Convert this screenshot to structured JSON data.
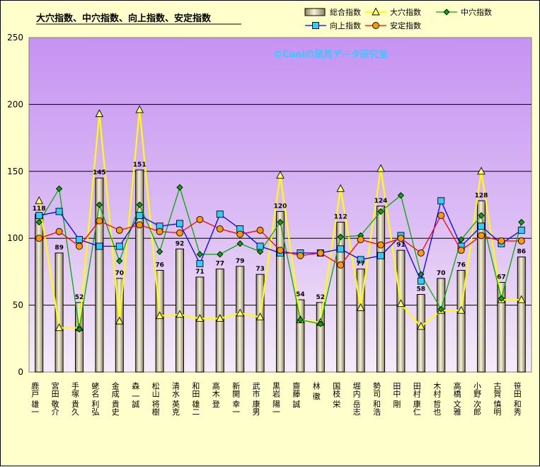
{
  "chart_data": {
    "type": "bar",
    "title": "大穴指数、中穴指数、向上指数、安定指数",
    "watermark": "©Caniの競馬データ研究室",
    "ylim": [
      0,
      250
    ],
    "yticks": [
      0,
      50,
      100,
      150,
      200,
      250
    ],
    "grid": true,
    "legend_position": "top-right",
    "categories": [
      "鹿戸 雄一",
      "宮田 敬介",
      "手塚 貴久",
      "蛯名 利弘",
      "金成 貴史",
      "森 一誠",
      "松山 将樹",
      "清水 英克",
      "和田 雄二",
      "高木 登",
      "新開 幸一",
      "武市 康男",
      "黒岩 陽一",
      "齋藤 誠",
      "林 徹",
      "国枝 栄",
      "堀内 岳志",
      "勢司 和浩",
      "田中 剛",
      "田村 康仁",
      "木村 哲也",
      "高橋 文雅",
      "小野 次郎",
      "古賀 慎明",
      "笹田 和秀"
    ],
    "series": [
      {
        "name": "総合指数",
        "type": "bar",
        "color": "#ddd9c3",
        "values": [
          118,
          89,
          52,
          145,
          70,
          151,
          76,
          92,
          71,
          77,
          79,
          73,
          120,
          54,
          52,
          112,
          77,
          124,
          91,
          58,
          70,
          76,
          128,
          67,
          86
        ]
      },
      {
        "name": "大穴指数",
        "type": "line",
        "marker": "triangle",
        "color": "#ffff00",
        "values": [
          128,
          33,
          33,
          193,
          38,
          196,
          42,
          43,
          40,
          40,
          44,
          41,
          147,
          39,
          37,
          137,
          48,
          152,
          51,
          34,
          46,
          46,
          150,
          54,
          54
        ]
      },
      {
        "name": "中穴指数",
        "type": "line",
        "marker": "diamond",
        "color": "#00aa00",
        "values": [
          112,
          137,
          32,
          125,
          83,
          125,
          90,
          138,
          88,
          88,
          96,
          90,
          112,
          39,
          36,
          101,
          102,
          120,
          132,
          73,
          47,
          99,
          117,
          55,
          112
        ]
      },
      {
        "name": "向上指数",
        "type": "line",
        "marker": "square",
        "color": "#0000ff",
        "values": [
          117,
          120,
          99,
          94,
          94,
          117,
          109,
          111,
          81,
          118,
          107,
          94,
          89,
          89,
          89,
          92,
          84,
          87,
          102,
          68,
          128,
          94,
          109,
          96,
          106
        ]
      },
      {
        "name": "安定指数",
        "type": "line",
        "marker": "circle",
        "color": "#ff0000",
        "values": [
          100,
          105,
          94,
          113,
          106,
          110,
          105,
          104,
          114,
          107,
          103,
          106,
          91,
          87,
          89,
          80,
          99,
          95,
          100,
          89,
          117,
          91,
          102,
          98,
          98
        ]
      }
    ]
  }
}
